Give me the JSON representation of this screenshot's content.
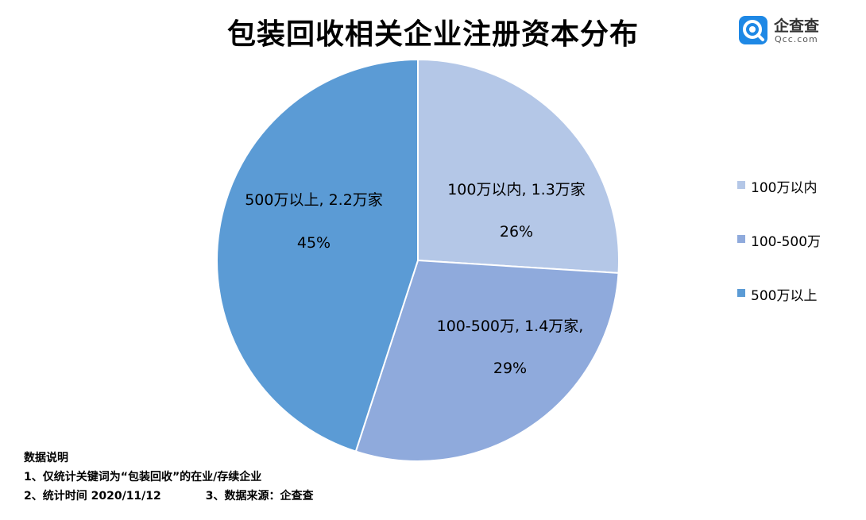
{
  "title": "包装回收相关企业注册资本分布",
  "logo": {
    "name": "企查查",
    "url": "Qcc.com",
    "icon": "qcc-logo-icon",
    "color": "#1e88e5"
  },
  "chart_data": {
    "type": "pie",
    "title": "包装回收相关企业注册资本分布",
    "slices": [
      {
        "name": "100万以内",
        "label": "100万以内, 1.3万家",
        "pct_label": "26%",
        "value": 26,
        "color": "#b4c7e7"
      },
      {
        "name": "100-500万",
        "label": "100-500万, 1.4万家,",
        "pct_label": "29%",
        "value": 29,
        "color": "#8faadc"
      },
      {
        "name": "500万以上",
        "label": "500万以上, 2.2万家",
        "pct_label": "45%",
        "value": 45,
        "color": "#5b9bd5"
      }
    ],
    "legend_position": "right"
  },
  "notes": {
    "heading": "数据说明",
    "line1": "1、仅统计关键词为“包装回收”的在业/存续企业",
    "line2a": "2、统计时间 2020/11/12",
    "line2b": "3、数据来源：企查查"
  }
}
